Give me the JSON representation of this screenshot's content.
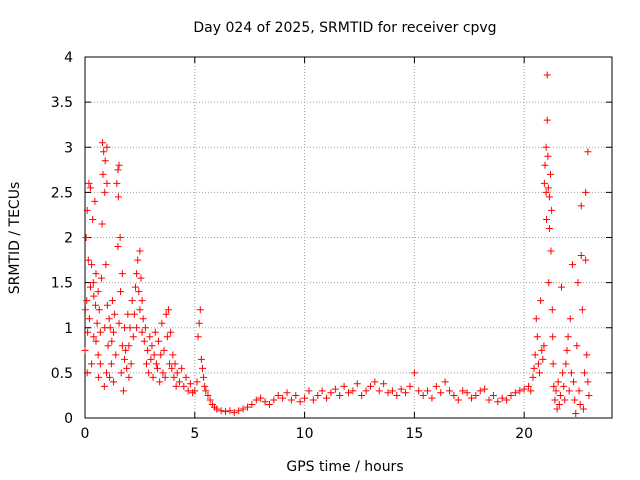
{
  "chart_data": {
    "type": "scatter",
    "title": "Day 024 of 2025, SRMTID for receiver cpvg",
    "xlabel": "GPS time / hours",
    "ylabel": "SRMTID / TECUs",
    "xlim": [
      0,
      24
    ],
    "ylim": [
      0,
      4
    ],
    "xticks": [
      0,
      5,
      10,
      15,
      20
    ],
    "yticks": [
      0,
      0.5,
      1,
      1.5,
      2,
      2.5,
      3,
      3.5,
      4
    ],
    "xtick_labels": [
      "0",
      "5",
      "10",
      "15",
      "20"
    ],
    "ytick_labels": [
      "0",
      "0.5",
      "1",
      "1.5",
      "2",
      "2.5",
      "3",
      "3.5",
      "4"
    ],
    "grid": true,
    "marker": "+",
    "series": [
      {
        "name": "SRMTID",
        "color": "#ff0000",
        "points": [
          [
            0.0,
            0.75
          ],
          [
            0.02,
            1.2
          ],
          [
            0.05,
            2.0
          ],
          [
            0.08,
            1.3
          ],
          [
            0.1,
            0.5
          ],
          [
            0.1,
            2.3
          ],
          [
            0.12,
            0.95
          ],
          [
            0.15,
            1.75
          ],
          [
            0.18,
            2.6
          ],
          [
            0.2,
            1.1
          ],
          [
            0.25,
            2.55
          ],
          [
            0.25,
            1.45
          ],
          [
            0.3,
            0.6
          ],
          [
            0.3,
            1.7
          ],
          [
            0.35,
            2.2
          ],
          [
            0.38,
            1.5
          ],
          [
            0.4,
            0.9
          ],
          [
            0.4,
            1.35
          ],
          [
            0.45,
            2.4
          ],
          [
            0.48,
            1.25
          ],
          [
            0.5,
            0.85
          ],
          [
            0.5,
            1.6
          ],
          [
            0.55,
            1.05
          ],
          [
            0.6,
            0.7
          ],
          [
            0.6,
            1.4
          ],
          [
            0.62,
            0.45
          ],
          [
            0.65,
            1.2
          ],
          [
            0.7,
            0.95
          ],
          [
            0.7,
            0.6
          ],
          [
            0.75,
            1.55
          ],
          [
            0.78,
            2.15
          ],
          [
            0.8,
            3.05
          ],
          [
            0.82,
            2.7
          ],
          [
            0.85,
            2.95
          ],
          [
            0.88,
            0.35
          ],
          [
            0.9,
            2.5
          ],
          [
            0.9,
            1.0
          ],
          [
            0.92,
            2.85
          ],
          [
            0.95,
            1.7
          ],
          [
            0.98,
            0.5
          ],
          [
            1.0,
            3.0
          ],
          [
            1.0,
            2.6
          ],
          [
            1.02,
            1.25
          ],
          [
            1.05,
            0.8
          ],
          [
            1.1,
            1.1
          ],
          [
            1.12,
            0.45
          ],
          [
            1.15,
            1.0
          ],
          [
            1.2,
            0.6
          ],
          [
            1.22,
            0.85
          ],
          [
            1.25,
            1.3
          ],
          [
            1.3,
            0.4
          ],
          [
            1.3,
            0.95
          ],
          [
            1.35,
            1.15
          ],
          [
            1.4,
            0.7
          ],
          [
            1.45,
            2.6
          ],
          [
            1.5,
            2.75
          ],
          [
            1.5,
            1.9
          ],
          [
            1.52,
            2.45
          ],
          [
            1.55,
            2.8
          ],
          [
            1.55,
            1.05
          ],
          [
            1.6,
            2.0
          ],
          [
            1.62,
            1.4
          ],
          [
            1.65,
            0.5
          ],
          [
            1.7,
            0.8
          ],
          [
            1.7,
            1.6
          ],
          [
            1.75,
            0.3
          ],
          [
            1.8,
            0.65
          ],
          [
            1.8,
            1.0
          ],
          [
            1.85,
            0.75
          ],
          [
            1.9,
            0.55
          ],
          [
            1.95,
            1.15
          ],
          [
            2.0,
            0.8
          ],
          [
            2.0,
            0.45
          ],
          [
            2.05,
            1.0
          ],
          [
            2.1,
            0.6
          ],
          [
            2.15,
            1.3
          ],
          [
            2.2,
            0.9
          ],
          [
            2.25,
            1.15
          ],
          [
            2.3,
            1.45
          ],
          [
            2.35,
            1.6
          ],
          [
            2.35,
            1.0
          ],
          [
            2.4,
            1.75
          ],
          [
            2.45,
            1.4
          ],
          [
            2.5,
            1.85
          ],
          [
            2.5,
            1.2
          ],
          [
            2.55,
            1.55
          ],
          [
            2.6,
            1.3
          ],
          [
            2.6,
            0.95
          ],
          [
            2.65,
            1.1
          ],
          [
            2.7,
            0.85
          ],
          [
            2.75,
            1.0
          ],
          [
            2.8,
            0.6
          ],
          [
            2.85,
            0.75
          ],
          [
            2.9,
            0.5
          ],
          [
            2.95,
            0.9
          ],
          [
            3.0,
            0.65
          ],
          [
            3.05,
            0.8
          ],
          [
            3.1,
            0.45
          ],
          [
            3.15,
            0.7
          ],
          [
            3.2,
            0.95
          ],
          [
            3.25,
            0.6
          ],
          [
            3.3,
            0.55
          ],
          [
            3.35,
            0.85
          ],
          [
            3.4,
            0.4
          ],
          [
            3.45,
            0.7
          ],
          [
            3.5,
            1.05
          ],
          [
            3.55,
            0.5
          ],
          [
            3.6,
            0.75
          ],
          [
            3.65,
            0.45
          ],
          [
            3.7,
            1.15
          ],
          [
            3.75,
            0.9
          ],
          [
            3.8,
            1.2
          ],
          [
            3.85,
            0.6
          ],
          [
            3.9,
            0.95
          ],
          [
            3.95,
            0.55
          ],
          [
            4.0,
            0.7
          ],
          [
            4.05,
            0.45
          ],
          [
            4.1,
            0.6
          ],
          [
            4.15,
            0.35
          ],
          [
            4.2,
            0.5
          ],
          [
            4.3,
            0.4
          ],
          [
            4.4,
            0.55
          ],
          [
            4.5,
            0.35
          ],
          [
            4.6,
            0.45
          ],
          [
            4.7,
            0.3
          ],
          [
            4.8,
            0.38
          ],
          [
            4.9,
            0.28
          ],
          [
            5.0,
            0.3
          ],
          [
            5.1,
            0.4
          ],
          [
            5.15,
            0.9
          ],
          [
            5.2,
            1.05
          ],
          [
            5.25,
            1.2
          ],
          [
            5.3,
            0.65
          ],
          [
            5.35,
            0.55
          ],
          [
            5.4,
            0.45
          ],
          [
            5.45,
            0.35
          ],
          [
            5.5,
            0.3
          ],
          [
            5.6,
            0.25
          ],
          [
            5.7,
            0.2
          ],
          [
            5.8,
            0.15
          ],
          [
            5.9,
            0.12
          ],
          [
            6.0,
            0.1
          ],
          [
            6.2,
            0.08
          ],
          [
            6.4,
            0.07
          ],
          [
            6.6,
            0.08
          ],
          [
            6.8,
            0.06
          ],
          [
            7.0,
            0.08
          ],
          [
            7.2,
            0.1
          ],
          [
            7.4,
            0.12
          ],
          [
            7.6,
            0.15
          ],
          [
            7.8,
            0.2
          ],
          [
            8.0,
            0.22
          ],
          [
            8.2,
            0.18
          ],
          [
            8.4,
            0.15
          ],
          [
            8.6,
            0.2
          ],
          [
            8.8,
            0.25
          ],
          [
            9.0,
            0.22
          ],
          [
            9.2,
            0.28
          ],
          [
            9.4,
            0.2
          ],
          [
            9.6,
            0.25
          ],
          [
            9.8,
            0.18
          ],
          [
            10.0,
            0.22
          ],
          [
            10.2,
            0.3
          ],
          [
            10.4,
            0.2
          ],
          [
            10.6,
            0.25
          ],
          [
            10.8,
            0.3
          ],
          [
            11.0,
            0.22
          ],
          [
            11.2,
            0.28
          ],
          [
            11.4,
            0.32
          ],
          [
            11.6,
            0.25
          ],
          [
            11.8,
            0.35
          ],
          [
            12.0,
            0.28
          ],
          [
            12.2,
            0.3
          ],
          [
            12.4,
            0.38
          ],
          [
            12.6,
            0.25
          ],
          [
            12.8,
            0.3
          ],
          [
            13.0,
            0.35
          ],
          [
            13.2,
            0.4
          ],
          [
            13.4,
            0.3
          ],
          [
            13.6,
            0.38
          ],
          [
            13.8,
            0.28
          ],
          [
            14.0,
            0.3
          ],
          [
            14.2,
            0.25
          ],
          [
            14.4,
            0.32
          ],
          [
            14.6,
            0.28
          ],
          [
            14.8,
            0.35
          ],
          [
            15.0,
            0.5
          ],
          [
            15.2,
            0.3
          ],
          [
            15.4,
            0.25
          ],
          [
            15.6,
            0.3
          ],
          [
            15.8,
            0.22
          ],
          [
            16.0,
            0.35
          ],
          [
            16.2,
            0.28
          ],
          [
            16.4,
            0.4
          ],
          [
            16.6,
            0.3
          ],
          [
            16.8,
            0.25
          ],
          [
            17.0,
            0.2
          ],
          [
            17.2,
            0.3
          ],
          [
            17.4,
            0.28
          ],
          [
            17.6,
            0.22
          ],
          [
            17.8,
            0.25
          ],
          [
            18.0,
            0.3
          ],
          [
            18.2,
            0.32
          ],
          [
            18.4,
            0.2
          ],
          [
            18.6,
            0.25
          ],
          [
            18.8,
            0.18
          ],
          [
            19.0,
            0.22
          ],
          [
            19.2,
            0.2
          ],
          [
            19.4,
            0.25
          ],
          [
            19.6,
            0.28
          ],
          [
            19.8,
            0.3
          ],
          [
            20.0,
            0.32
          ],
          [
            20.2,
            0.35
          ],
          [
            20.3,
            0.3
          ],
          [
            20.4,
            0.45
          ],
          [
            20.45,
            0.55
          ],
          [
            20.5,
            0.7
          ],
          [
            20.55,
            1.1
          ],
          [
            20.6,
            0.9
          ],
          [
            20.65,
            0.6
          ],
          [
            20.7,
            0.5
          ],
          [
            20.75,
            1.3
          ],
          [
            20.8,
            0.75
          ],
          [
            20.85,
            0.65
          ],
          [
            20.9,
            0.8
          ],
          [
            20.92,
            2.6
          ],
          [
            20.95,
            2.8
          ],
          [
            21.0,
            3.0
          ],
          [
            21.0,
            2.5
          ],
          [
            21.02,
            2.2
          ],
          [
            21.05,
            3.8
          ],
          [
            21.05,
            3.3
          ],
          [
            21.08,
            2.9
          ],
          [
            21.1,
            2.55
          ],
          [
            21.12,
            1.5
          ],
          [
            21.15,
            2.45
          ],
          [
            21.15,
            2.1
          ],
          [
            21.2,
            2.7
          ],
          [
            21.22,
            1.85
          ],
          [
            21.25,
            2.3
          ],
          [
            21.28,
            1.2
          ],
          [
            21.3,
            0.9
          ],
          [
            21.32,
            0.6
          ],
          [
            21.35,
            0.35
          ],
          [
            21.4,
            0.2
          ],
          [
            21.45,
            0.3
          ],
          [
            21.5,
            0.1
          ],
          [
            21.55,
            0.4
          ],
          [
            21.6,
            0.15
          ],
          [
            21.65,
            0.25
          ],
          [
            21.7,
            1.45
          ],
          [
            21.75,
            0.5
          ],
          [
            21.8,
            0.35
          ],
          [
            21.85,
            0.2
          ],
          [
            21.9,
            0.6
          ],
          [
            21.95,
            0.75
          ],
          [
            22.0,
            0.9
          ],
          [
            22.05,
            0.3
          ],
          [
            22.1,
            1.1
          ],
          [
            22.15,
            0.5
          ],
          [
            22.2,
            1.7
          ],
          [
            22.25,
            0.4
          ],
          [
            22.3,
            0.2
          ],
          [
            22.35,
            0.05
          ],
          [
            22.4,
            0.8
          ],
          [
            22.45,
            1.5
          ],
          [
            22.5,
            0.3
          ],
          [
            22.55,
            0.15
          ],
          [
            22.6,
            1.8
          ],
          [
            22.6,
            2.35
          ],
          [
            22.65,
            1.2
          ],
          [
            22.7,
            0.1
          ],
          [
            22.75,
            0.5
          ],
          [
            22.8,
            2.5
          ],
          [
            22.8,
            1.75
          ],
          [
            22.85,
            0.7
          ],
          [
            22.9,
            0.4
          ],
          [
            22.9,
            2.95
          ],
          [
            22.95,
            0.25
          ]
        ]
      }
    ]
  }
}
